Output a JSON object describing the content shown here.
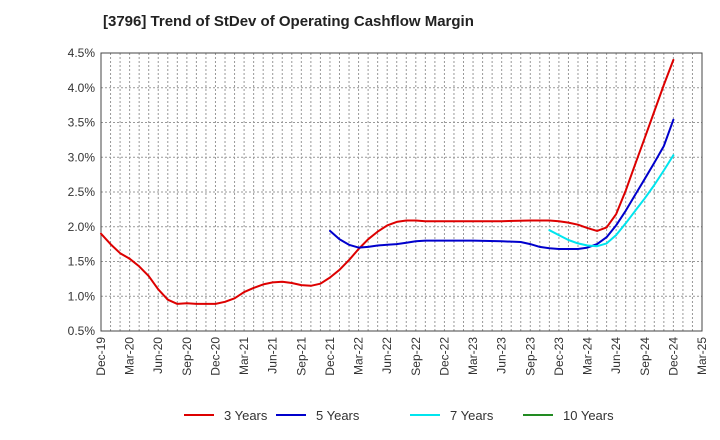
{
  "chart_data": {
    "type": "line",
    "title": "[3796]  Trend of StDev of Operating Cashflow Margin",
    "xlabel": "",
    "ylabel": "",
    "ylim": [
      0.5,
      4.5
    ],
    "y_ticks": [
      "0.5%",
      "1.0%",
      "1.5%",
      "2.0%",
      "2.5%",
      "3.0%",
      "3.5%",
      "4.0%",
      "4.5%"
    ],
    "x_ticks": [
      "Dec-19",
      "Mar-20",
      "Jun-20",
      "Sep-20",
      "Dec-20",
      "Mar-21",
      "Jun-21",
      "Sep-21",
      "Dec-21",
      "Mar-22",
      "Jun-22",
      "Sep-22",
      "Dec-22",
      "Mar-23",
      "Jun-23",
      "Sep-23",
      "Dec-23",
      "Mar-24",
      "Jun-24",
      "Sep-24",
      "Dec-24",
      "Mar-25"
    ],
    "grid": true,
    "legend_position": "bottom",
    "series": [
      {
        "name": "3 Years",
        "color": "#dd0000",
        "points": [
          [
            "Dec-19",
            1.9
          ],
          [
            "Jan-20",
            1.75
          ],
          [
            "Feb-20",
            1.62
          ],
          [
            "Mar-20",
            1.54
          ],
          [
            "Apr-20",
            1.43
          ],
          [
            "May-20",
            1.29
          ],
          [
            "Jun-20",
            1.1
          ],
          [
            "Jul-20",
            0.95
          ],
          [
            "Aug-20",
            0.89
          ],
          [
            "Sep-20",
            0.9
          ],
          [
            "Oct-20",
            0.89
          ],
          [
            "Nov-20",
            0.89
          ],
          [
            "Dec-20",
            0.89
          ],
          [
            "Jan-21",
            0.92
          ],
          [
            "Feb-21",
            0.97
          ],
          [
            "Mar-21",
            1.06
          ],
          [
            "Apr-21",
            1.12
          ],
          [
            "May-21",
            1.17
          ],
          [
            "Jun-21",
            1.2
          ],
          [
            "Jul-21",
            1.21
          ],
          [
            "Aug-21",
            1.19
          ],
          [
            "Sep-21",
            1.16
          ],
          [
            "Oct-21",
            1.15
          ],
          [
            "Nov-21",
            1.18
          ],
          [
            "Dec-21",
            1.27
          ],
          [
            "Jan-22",
            1.38
          ],
          [
            "Feb-22",
            1.52
          ],
          [
            "Mar-22",
            1.68
          ],
          [
            "Apr-22",
            1.82
          ],
          [
            "May-22",
            1.93
          ],
          [
            "Jun-22",
            2.02
          ],
          [
            "Jul-22",
            2.07
          ],
          [
            "Aug-22",
            2.09
          ],
          [
            "Sep-22",
            2.09
          ],
          [
            "Oct-22",
            2.08
          ],
          [
            "Nov-22",
            2.08
          ],
          [
            "Dec-22",
            2.08
          ],
          [
            "Mar-23",
            2.08
          ],
          [
            "Jun-23",
            2.08
          ],
          [
            "Sep-23",
            2.09
          ],
          [
            "Nov-23",
            2.09
          ],
          [
            "Dec-23",
            2.08
          ],
          [
            "Jan-24",
            2.06
          ],
          [
            "Feb-24",
            2.03
          ],
          [
            "Mar-24",
            1.98
          ],
          [
            "Apr-24",
            1.94
          ],
          [
            "May-24",
            1.99
          ],
          [
            "Jun-24",
            2.18
          ],
          [
            "Jul-24",
            2.52
          ],
          [
            "Aug-24",
            2.9
          ],
          [
            "Sep-24",
            3.28
          ],
          [
            "Oct-24",
            3.66
          ],
          [
            "Nov-24",
            4.04
          ],
          [
            "Dec-24",
            4.4
          ]
        ]
      },
      {
        "name": "5 Years",
        "color": "#0000cc",
        "points": [
          [
            "Dec-21",
            1.94
          ],
          [
            "Jan-22",
            1.82
          ],
          [
            "Feb-22",
            1.74
          ],
          [
            "Mar-22",
            1.7
          ],
          [
            "Apr-22",
            1.71
          ],
          [
            "May-22",
            1.73
          ],
          [
            "Jun-22",
            1.74
          ],
          [
            "Jul-22",
            1.75
          ],
          [
            "Aug-22",
            1.77
          ],
          [
            "Sep-22",
            1.79
          ],
          [
            "Oct-22",
            1.8
          ],
          [
            "Dec-22",
            1.8
          ],
          [
            "Mar-23",
            1.8
          ],
          [
            "Jun-23",
            1.79
          ],
          [
            "Aug-23",
            1.78
          ],
          [
            "Sep-23",
            1.75
          ],
          [
            "Oct-23",
            1.71
          ],
          [
            "Nov-23",
            1.69
          ],
          [
            "Dec-23",
            1.68
          ],
          [
            "Feb-24",
            1.68
          ],
          [
            "Mar-24",
            1.7
          ],
          [
            "Apr-24",
            1.75
          ],
          [
            "May-24",
            1.85
          ],
          [
            "Jun-24",
            2.02
          ],
          [
            "Jul-24",
            2.23
          ],
          [
            "Aug-24",
            2.46
          ],
          [
            "Sep-24",
            2.69
          ],
          [
            "Oct-24",
            2.92
          ],
          [
            "Nov-24",
            3.16
          ],
          [
            "Dec-24",
            3.54
          ]
        ]
      },
      {
        "name": "7 Years",
        "color": "#00e5ee",
        "points": [
          [
            "Nov-23",
            1.95
          ],
          [
            "Dec-23",
            1.88
          ],
          [
            "Jan-24",
            1.81
          ],
          [
            "Feb-24",
            1.76
          ],
          [
            "Mar-24",
            1.73
          ],
          [
            "Apr-24",
            1.72
          ],
          [
            "May-24",
            1.76
          ],
          [
            "Jun-24",
            1.88
          ],
          [
            "Jul-24",
            2.05
          ],
          [
            "Aug-24",
            2.23
          ],
          [
            "Sep-24",
            2.41
          ],
          [
            "Oct-24",
            2.6
          ],
          [
            "Nov-24",
            2.81
          ],
          [
            "Dec-24",
            3.03
          ]
        ]
      },
      {
        "name": "10 Years",
        "color": "#228b22",
        "points": []
      }
    ]
  }
}
